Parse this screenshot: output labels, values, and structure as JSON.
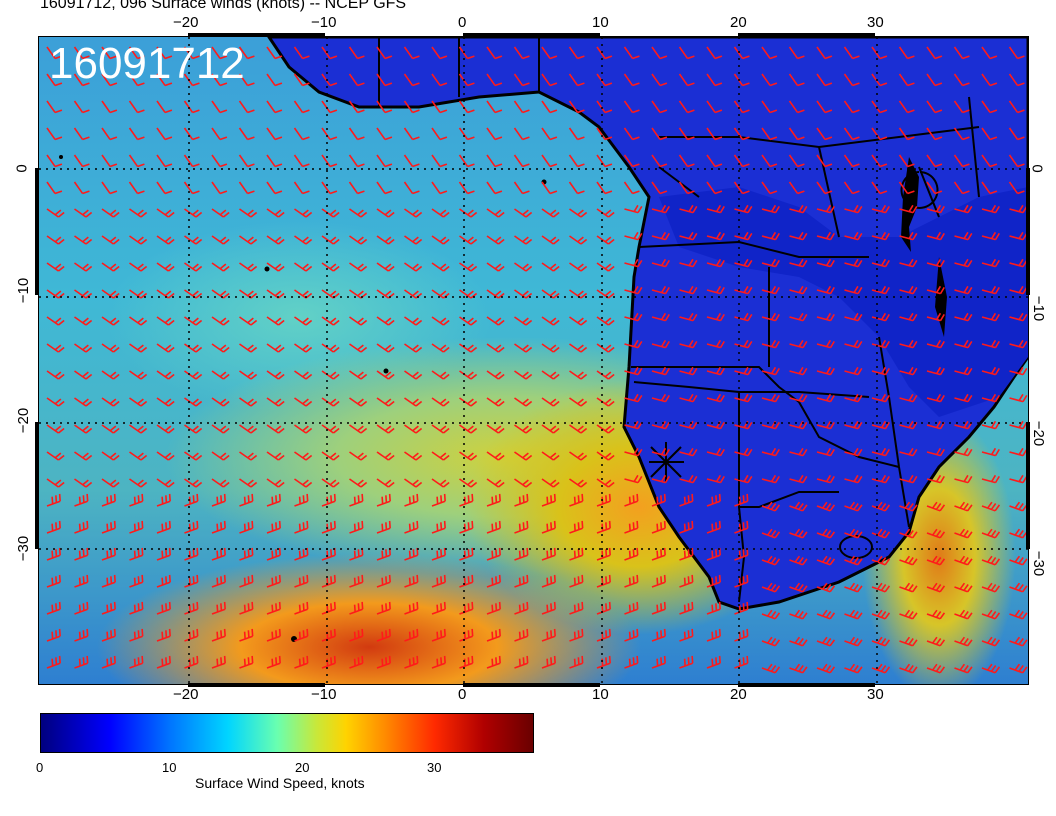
{
  "title": "16091712, 096 Surface winds (knots) -- NCEP GFS",
  "stamp": "16091712",
  "x_ticks_top": [
    "−20",
    "−10",
    "0",
    "10",
    "20",
    "30"
  ],
  "x_ticks_bottom": [
    "−20",
    "−10",
    "0",
    "10",
    "20",
    "30"
  ],
  "y_ticks_left": [
    "0",
    "−10",
    "−20",
    "−30"
  ],
  "y_ticks_right": [
    "0",
    "−10",
    "−20",
    "−30"
  ],
  "colorbar": {
    "labels": [
      "0",
      "10",
      "20",
      "30"
    ],
    "title": "Surface Wind Speed, knots",
    "range": [
      0,
      38
    ]
  },
  "colors": {
    "barb": "#ff1a1a",
    "land_outline": "#000000",
    "grid": "#000000"
  }
}
